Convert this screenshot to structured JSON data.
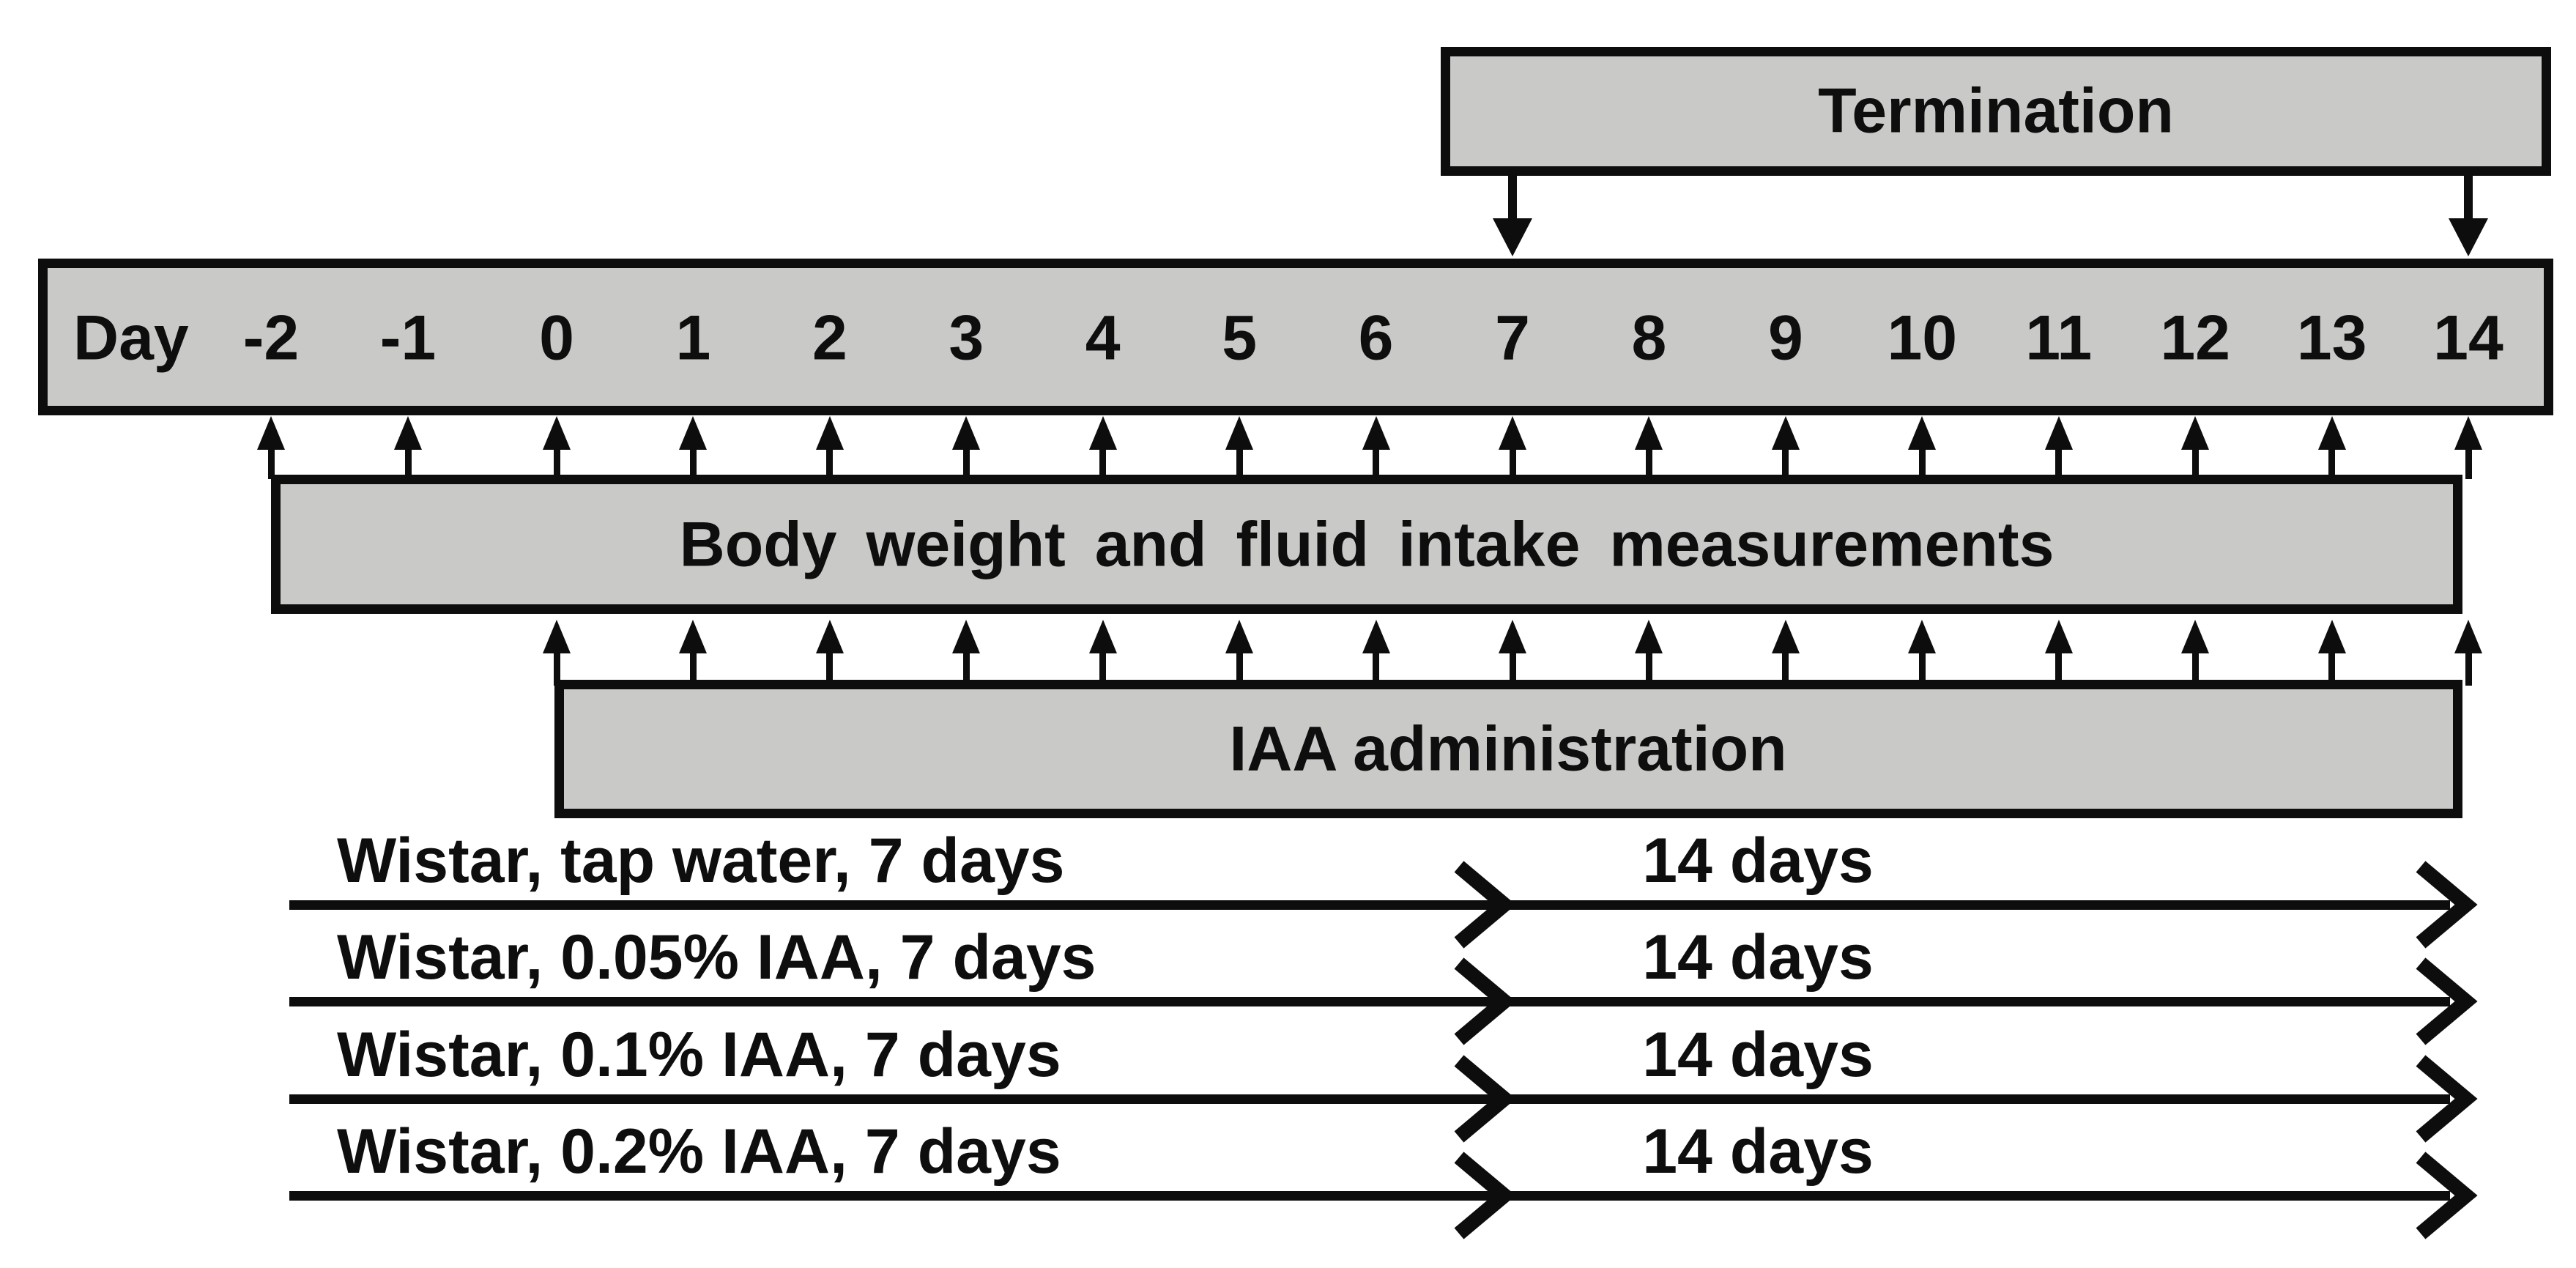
{
  "figure": {
    "background": "#ffffff",
    "box_fill": "#c9cac8",
    "box_border": "#0d0d0d",
    "text_color": "#0e0e0e",
    "termination": {
      "label": "Termination",
      "arrow_days": [
        "7",
        "14"
      ]
    },
    "day_axis": {
      "title": "Day",
      "ticks": [
        "-2",
        "-1",
        "0",
        "1",
        "2",
        "3",
        "4",
        "5",
        "6",
        "7",
        "8",
        "9",
        "10",
        "11",
        "12",
        "13",
        "14"
      ]
    },
    "measurements": {
      "label": "Body weight and fluid intake measurements",
      "arrow_days": [
        "-2",
        "-1",
        "0",
        "1",
        "2",
        "3",
        "4",
        "5",
        "6",
        "7",
        "8",
        "9",
        "10",
        "11",
        "12",
        "13",
        "14"
      ]
    },
    "iaa": {
      "label": "IAA administration",
      "arrow_days": [
        "0",
        "1",
        "2",
        "3",
        "4",
        "5",
        "6",
        "7",
        "8",
        "9",
        "10",
        "11",
        "12",
        "13",
        "14"
      ]
    },
    "groups": [
      {
        "label": "Wistar, tap water, 7 days",
        "duration": "14 days"
      },
      {
        "label": "Wistar, 0.05% IAA, 7 days",
        "duration": "14 days"
      },
      {
        "label": "Wistar, 0.1% IAA, 7 days",
        "duration": "14 days"
      },
      {
        "label": "Wistar, 0.2% IAA, 7 days",
        "duration": "14 days"
      }
    ]
  }
}
